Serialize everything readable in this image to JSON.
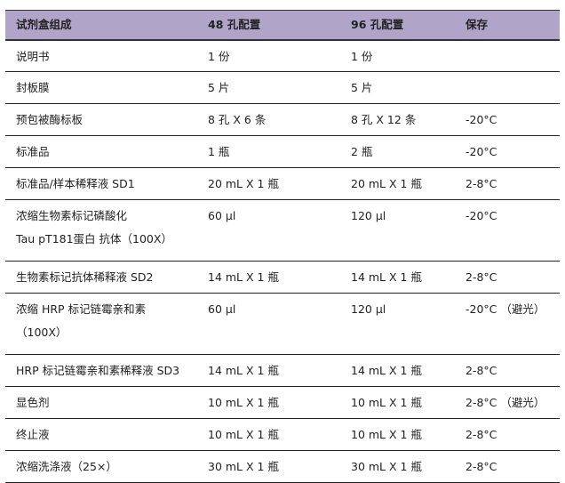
{
  "header": [
    "试剂盒组成",
    "48 孔配置",
    "96 孔配置",
    "保存"
  ],
  "header_bg": "#b0a4c8",
  "rows": [
    {
      "name": "说明书",
      "w48": "1 份",
      "w96": "1 份",
      "storage": ""
    },
    {
      "name": "封板膜",
      "w48": "5 片",
      "w96": "5 片",
      "storage": ""
    },
    {
      "name": "预包被酶标板",
      "w48": "8 孔 X 6 条",
      "w96": "8 孔 X 12 条",
      "storage": "-20°C"
    },
    {
      "name": "标准品",
      "w48": "1 瓶",
      "w96": "2 瓶",
      "storage": "-20°C"
    },
    {
      "name": "标准品/样本稀释液  SD1",
      "w48": "20 mL X 1 瓶",
      "w96": "20 mL X 1 瓶",
      "storage": "2-8°C"
    },
    {
      "name": "浓缩生物素标记磷酸化",
      "name2": "Tau pT181蛋白 抗体（100X）",
      "w48": "60 µl",
      "w96": "120 µl",
      "storage": "-20°C"
    },
    {
      "name": "生物素标记抗体稀释液  SD2",
      "w48": "14 mL X 1 瓶",
      "w96": "14 mL X 1 瓶",
      "storage": "2-8°C"
    },
    {
      "name": "浓缩 HRP 标记链霉亲和素",
      "name2": "（100X）",
      "w48": "60 µl",
      "w96": "120 µl",
      "storage": "-20°C （避光）"
    },
    {
      "name": "HRP 标记链霉亲和素稀释液  SD3",
      "w48": "14 mL X 1 瓶",
      "w96": "14 mL X 1 瓶",
      "storage": "2-8°C"
    },
    {
      "name": "显色剂",
      "w48": "10 mL X 1 瓶",
      "w96": "10 mL X 1 瓶",
      "storage": "2-8°C （避光）"
    },
    {
      "name": "终止液",
      "w48": "10 mL X 1 瓶",
      "w96": "10 mL X 1 瓶",
      "storage": "2-8°C"
    },
    {
      "name": "浓缩洗涤液（25×）",
      "w48": "30 mL X 1 瓶",
      "w96": "30 mL X 1 瓶",
      "storage": "2-8°C"
    }
  ]
}
